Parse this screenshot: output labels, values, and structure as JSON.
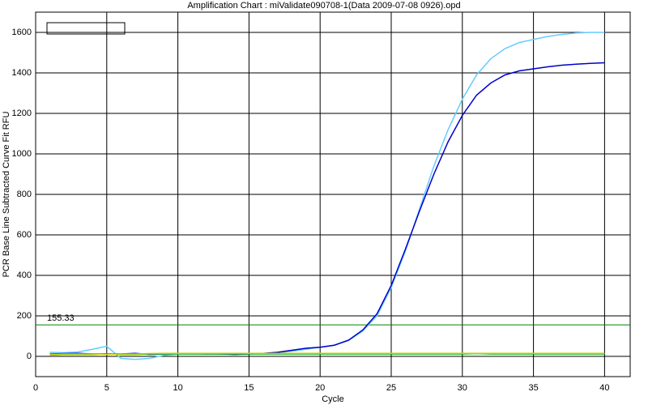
{
  "chart_data": {
    "type": "line",
    "title": "Amplification Chart : miValidate090708-1(Data 2009-07-08 0926).opd",
    "x_label": "Cycle",
    "y_label": "PCR Base Line Subtracted Curve Fit RFU",
    "x": [
      1,
      2,
      3,
      4,
      5,
      6,
      7,
      8,
      9,
      10,
      11,
      12,
      13,
      14,
      15,
      16,
      17,
      18,
      19,
      20,
      21,
      22,
      23,
      24,
      25,
      26,
      27,
      28,
      29,
      30,
      31,
      32,
      33,
      34,
      35,
      36,
      37,
      38,
      39,
      40
    ],
    "series": [
      {
        "color": "#66ccff",
        "values": [
          20,
          18,
          22,
          35,
          50,
          -10,
          -15,
          -10,
          5,
          12,
          12,
          14,
          12,
          10,
          12,
          14,
          18,
          25,
          35,
          45,
          55,
          78,
          125,
          200,
          340,
          520,
          730,
          940,
          1120,
          1270,
          1390,
          1470,
          1520,
          1550,
          1565,
          1580,
          1590,
          1597,
          1600,
          1600
        ]
      },
      {
        "color": "#0000cc",
        "values": [
          12,
          14,
          15,
          12,
          12,
          12,
          15,
          10,
          12,
          14,
          13,
          12,
          12,
          10,
          12,
          15,
          20,
          30,
          40,
          45,
          55,
          80,
          130,
          210,
          350,
          530,
          720,
          900,
          1060,
          1190,
          1290,
          1350,
          1390,
          1410,
          1420,
          1430,
          1438,
          1443,
          1447,
          1450
        ]
      },
      {
        "color": "#00aa00",
        "values": [
          8,
          10,
          10,
          10,
          12,
          10,
          10,
          12,
          12,
          12,
          12,
          12,
          12,
          12,
          12,
          12,
          12,
          12,
          12,
          12,
          12,
          12,
          12,
          12,
          12,
          12,
          12,
          12,
          12,
          12,
          14,
          12,
          12,
          12,
          12,
          12,
          12,
          12,
          12,
          12
        ]
      },
      {
        "color": "#cccc00",
        "values": [
          10,
          12,
          12,
          12,
          10,
          12,
          12,
          14,
          15,
          15,
          15,
          15,
          15,
          15,
          15,
          15,
          15,
          15,
          15,
          15,
          15,
          15,
          15,
          15,
          15,
          15,
          15,
          15,
          15,
          15,
          15,
          15,
          15,
          15,
          15,
          15,
          15,
          15,
          15,
          15
        ]
      }
    ],
    "threshold": {
      "value": 155.33,
      "label": "155.33",
      "color": "#008000"
    },
    "xlim": [
      0,
      41.8
    ],
    "ylim": [
      -100,
      1700
    ],
    "xticks": [
      0,
      5,
      10,
      15,
      20,
      25,
      30,
      35,
      40
    ],
    "yticks": [
      0,
      200,
      400,
      600,
      800,
      1000,
      1200,
      1400,
      1600
    ],
    "grid": true
  }
}
